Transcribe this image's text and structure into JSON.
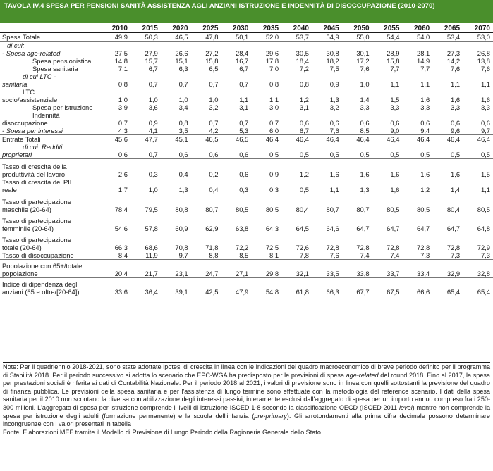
{
  "title": "TAVOLA IV.4 SPESA PER PENSIONI SANITÀ ASSISTENZA AGLI ANZIANI ISTRUZIONE E INDENNITÀ DI DISOCCUPAZIONE (2010-2070)",
  "years": [
    "2010",
    "2015",
    "2020",
    "2025",
    "2030",
    "2035",
    "2040",
    "2045",
    "2050",
    "2055",
    "2060",
    "2065",
    "2070"
  ],
  "rows": [
    {
      "label": "Spesa Totale",
      "values": [
        "49,9",
        "50,3",
        "46,5",
        "47,8",
        "50,1",
        "52,0",
        "53,7",
        "54,9",
        "55,0",
        "54,4",
        "54,0",
        "53,4",
        "53,0"
      ]
    },
    {
      "label": " di cui:",
      "values": []
    },
    {
      "label": "- Spesa age-related",
      "values": [
        "27,5",
        "27,9",
        "26,6",
        "27,2",
        "28,4",
        "29,6",
        "30,5",
        "30,8",
        "30,1",
        "28,9",
        "28,1",
        "27,3",
        "26,8"
      ]
    },
    {
      "label": "Spesa pensionistica",
      "values": [
        "14,8",
        "15,7",
        "15,1",
        "15,8",
        "16,7",
        "17,8",
        "18,4",
        "18,2",
        "17,2",
        "15,8",
        "14,9",
        "14,2",
        "13,8"
      ]
    },
    {
      "label": "Spesa sanitaria",
      "values": [
        "7,1",
        "6,7",
        "6,3",
        "6,5",
        "6,7",
        "7,0",
        "7,2",
        "7,5",
        "7,6",
        "7,7",
        "7,7",
        "7,6",
        "7,6"
      ]
    },
    {
      "label": "di cui LTC -",
      "values": []
    },
    {
      "label": "sanitaria",
      "values": [
        "0,8",
        "0,7",
        "0,7",
        "0,7",
        "0,7",
        "0,8",
        "0,8",
        "0,9",
        "1,0",
        "1,1",
        "1,1",
        "1,1",
        "1,1"
      ]
    },
    {
      "label": "LTC",
      "values": []
    },
    {
      "label": "socio/assistenziale",
      "values": [
        "1,0",
        "1,0",
        "1,0",
        "1,0",
        "1,1",
        "1,1",
        "1,2",
        "1,3",
        "1,4",
        "1,5",
        "1,6",
        "1,6",
        "1,6"
      ]
    },
    {
      "label": "Spesa per istruzione",
      "values": [
        "3,9",
        "3,6",
        "3,4",
        "3,2",
        "3,1",
        "3,0",
        "3,1",
        "3,2",
        "3,3",
        "3,3",
        "3,3",
        "3,3",
        "3,3"
      ]
    },
    {
      "label": "Indennità",
      "values": []
    },
    {
      "label": "disoccupazione",
      "values": [
        "0,7",
        "0,9",
        "0,8",
        "0,7",
        "0,7",
        "0,7",
        "0,6",
        "0,6",
        "0,6",
        "0,6",
        "0,6",
        "0,6",
        "0,6"
      ]
    },
    {
      "label": "- Spesa per interessi",
      "values": [
        "4,3",
        "4,1",
        "3,5",
        "4,2",
        "5,3",
        "6,0",
        "6,7",
        "7,6",
        "8,5",
        "9,0",
        "9,4",
        "9,6",
        "9,7"
      ]
    },
    {
      "label": "Entrate Totali",
      "values": [
        "45,6",
        "47,7",
        "45,1",
        "46,5",
        "46,5",
        "46,4",
        "46,4",
        "46,4",
        "46,4",
        "46,4",
        "46,4",
        "46,4",
        "46,4"
      ]
    },
    {
      "label": "di cui: Redditi",
      "values": []
    },
    {
      "label": "proprietari",
      "values": [
        "0,6",
        "0,7",
        "0,6",
        "0,6",
        "0,6",
        "0,5",
        "0,5",
        "0,5",
        "0,5",
        "0,5",
        "0,5",
        "0,5",
        "0,5"
      ]
    },
    {
      "label": "Tasso di crescita della",
      "values": []
    },
    {
      "label": "produttività del lavoro",
      "values": [
        "2,6",
        "0,3",
        "0,4",
        "0,2",
        "0,6",
        "0,9",
        "1,2",
        "1,6",
        "1,6",
        "1,6",
        "1,6",
        "1,6",
        "1,5"
      ]
    },
    {
      "label": "Tasso di crescita del PIL",
      "values": []
    },
    {
      "label": "reale",
      "values": [
        "1,7",
        "1,0",
        "1,3",
        "0,4",
        "0,3",
        "0,3",
        "0,5",
        "1,1",
        "1,3",
        "1,6",
        "1,2",
        "1,4",
        "1,1"
      ]
    },
    {
      "label": "Tasso di partecipazione",
      "values": []
    },
    {
      "label": "maschile (20-64)",
      "values": [
        "78,4",
        "79,5",
        "80,8",
        "80,7",
        "80,5",
        "80,5",
        "80,4",
        "80,7",
        "80,7",
        "80,5",
        "80,5",
        "80,4",
        "80,5"
      ]
    },
    {
      "label": "Tasso di partecipazione",
      "values": []
    },
    {
      "label": "femminile (20-64)",
      "values": [
        "54,6",
        "57,8",
        "60,9",
        "62,9",
        "63,8",
        "64,3",
        "64,5",
        "64,6",
        "64,7",
        "64,7",
        "64,7",
        "64,7",
        "64,8"
      ]
    },
    {
      "label": "Tasso di partecipazione",
      "values": []
    },
    {
      "label": "totale (20-64)",
      "values": [
        "66,3",
        "68,6",
        "70,8",
        "71,8",
        "72,2",
        "72,5",
        "72,6",
        "72,8",
        "72,8",
        "72,8",
        "72,8",
        "72,8",
        "72,9"
      ]
    },
    {
      "label": "Tasso di disoccupazione",
      "values": [
        "8,4",
        "11,9",
        "9,7",
        "8,8",
        "8,5",
        "8,1",
        "7,8",
        "7,6",
        "7,4",
        "7,4",
        "7,3",
        "7,3",
        "7,3"
      ]
    },
    {
      "label": "Popolazione con 65+/totale",
      "values": []
    },
    {
      "label": "popolazione",
      "values": [
        "20,4",
        "21,7",
        "23,1",
        "24,7",
        "27,1",
        "29,8",
        "32,1",
        "33,5",
        "33,8",
        "33,7",
        "33,4",
        "32,9",
        "32,8"
      ]
    },
    {
      "label": "Indice di dipendenza degli",
      "values": []
    },
    {
      "label": "anziani (65 e oltre/[20-64])",
      "values": [
        "33,6",
        "36,4",
        "39,1",
        "42,5",
        "47,9",
        "54,8",
        "61,8",
        "66,3",
        "67,7",
        "67,5",
        "66,6",
        "65,4",
        "65,4"
      ]
    }
  ],
  "notes": {
    "n1": "Note: Per il quadriennio 2018-2021, sono state adottate ipotesi di crescita in linea con le indicazioni del quadro macroeconomico di breve periodo definito per il programma di Stabilità 2018. Per il periodo successivo si adotta lo scenario che EPC-WGA ha predisposto per le previsioni di spesa ",
    "n1i": "age-related",
    "n2": " del round 2018. Fino al 2017, la spesa per prestazioni sociali è riferita ai dati di Contabilità Nazionale. Per il periodo 2018 al 2021, i valori di previsione sono in linea con quelli sottostanti la previsione del quadro di finanza pubblica. Le previsioni della spesa sanitaria e per l'assistenza di lungo termine sono effettuate con la metodologia del reference scenario. I dati della spesa sanitaria per il 2010 non scontano la diversa contabilizzazione degli interessi passivi, interamente esclusi dall'aggregato di spesa per un importo annuo compreso fra i 250-300 milioni. L'aggregato di spesa per istruzione comprende i livelli di istruzione ISCED 1-8 secondo la classificazione OECD (ISCED 2011 ",
    "n2i": "level",
    "n3": ") mentre non comprende la spesa per istruzione degli adulti (formazione permanente) e la scuola dell'infanzia (",
    "n3i": "pre-primary",
    "n4": "). Gli arrotondamenti alla prima cifra decimale possono determinare incongruenze con i valori presentati in tabella",
    "source": "Fonte: Elaborazioni MEF tramite il Modello di Previsione di Lungo Periodo della Ragioneria Generale dello Stato."
  }
}
